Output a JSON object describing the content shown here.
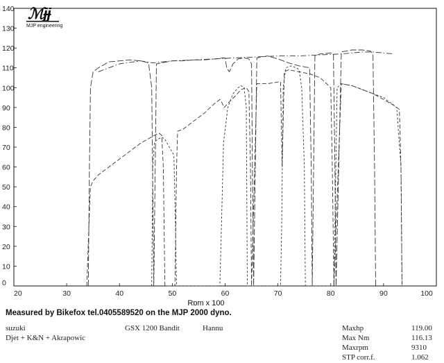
{
  "logo": {
    "brand": "MJP engineering"
  },
  "measured_by": "Measured by Bikefox tel.0405589520 on the MJP 2000 dyno.",
  "bike": {
    "make": "suzuki",
    "model": "GSX 1200 Bandit",
    "rider": "Hannu",
    "mods": "Djet + K&N + Akrapowic"
  },
  "summary": [
    {
      "label": "Maxhp",
      "value": "119.00"
    },
    {
      "label": "Max Nm",
      "value": "116.13"
    },
    {
      "label": "Maxrpm",
      "value": "9310"
    },
    {
      "label": "STP corr.f.",
      "value": "1.062"
    }
  ],
  "chart_data": {
    "type": "line",
    "xlabel": "Rpm x 100",
    "ylabel": "",
    "xlim": [
      20,
      100
    ],
    "ylim": [
      0,
      140
    ],
    "x_ticks": [
      20,
      30,
      40,
      50,
      60,
      70,
      80,
      90,
      100
    ],
    "y_ticks": [
      0,
      10,
      20,
      30,
      40,
      50,
      60,
      70,
      80,
      90,
      100,
      110,
      120,
      130,
      140
    ],
    "grid": false,
    "series": [
      {
        "style": "dash-long",
        "x": [
          34.1,
          34.3,
          34.5,
          35,
          36,
          38,
          40,
          42,
          44,
          45.5,
          46.1,
          46.3,
          46.5,
          47,
          48,
          49,
          50,
          52,
          54,
          56,
          58,
          59.5,
          60,
          60.3,
          60.8,
          61.5,
          62.5,
          63.5,
          64.5,
          65,
          65.2,
          65.4,
          66,
          68,
          70,
          72,
          74,
          76,
          76.3,
          76.5,
          77,
          78,
          80,
          80.5,
          80.8,
          81,
          82,
          84,
          86,
          87.5,
          88,
          88.3,
          88.5
        ],
        "y": [
          0,
          60,
          100,
          108,
          110,
          113,
          113.5,
          114,
          113.5,
          112.5,
          100,
          50,
          0,
          112,
          112.5,
          113,
          113.5,
          113.5,
          114,
          114,
          114.5,
          115,
          115,
          110,
          108,
          112,
          114.5,
          115,
          114.5,
          112,
          50,
          0,
          115,
          116,
          114.5,
          112.5,
          111,
          110,
          60,
          0,
          116,
          117,
          117.5,
          117,
          60,
          0,
          118,
          119,
          119,
          118.5,
          117,
          60,
          0
        ]
      },
      {
        "style": "dash-medium",
        "x": [
          33.8,
          34.2,
          34.5,
          35,
          36,
          38,
          40,
          42,
          44,
          46,
          47,
          47.5,
          48,
          48.3,
          48.6,
          50.5,
          50.8,
          51,
          52,
          54,
          56,
          58,
          59,
          59.3,
          59.8,
          60.5,
          62,
          63,
          64,
          64.5,
          64.8,
          65,
          66,
          68,
          70.5,
          70.8,
          71.2,
          72,
          74,
          76,
          78,
          80,
          80.3,
          80.6,
          82,
          84,
          86,
          88,
          90,
          92,
          93,
          93.3,
          93.5
        ],
        "y": [
          0,
          30,
          50,
          53,
          56,
          60,
          64,
          68,
          72,
          75,
          76.5,
          77,
          76,
          60,
          0,
          0,
          60,
          78,
          79,
          83,
          87,
          92,
          94,
          93,
          90,
          92,
          96,
          99,
          100,
          98,
          60,
          0,
          102,
          102,
          103,
          60,
          108,
          109,
          108,
          107,
          105,
          100,
          60,
          0,
          102,
          101,
          99,
          97,
          94,
          91,
          89,
          60,
          0
        ]
      },
      {
        "style": "dash-short",
        "x": [
          46.1,
          46.3,
          46.6,
          47,
          48,
          48.6,
          49,
          50.3,
          50.6,
          50.8,
          59,
          59.3,
          59.7,
          60.5,
          61.5,
          62.5,
          63,
          63.6,
          64,
          64.2,
          70.5,
          70.7,
          71,
          71.5,
          72.5,
          73.5,
          74,
          74.5,
          75,
          75.2,
          80.6,
          80.8,
          81.2,
          82,
          84,
          86,
          88,
          90,
          91,
          91.5,
          92.5,
          93.3,
          93.5
        ],
        "y": [
          0,
          60,
          72,
          73.5,
          75,
          74,
          72,
          66,
          30,
          0,
          0,
          30,
          72,
          90,
          97,
          100,
          101,
          100,
          90,
          0,
          0,
          30,
          100,
          110,
          111,
          110,
          109,
          100,
          60,
          0,
          0,
          30,
          100,
          102,
          101,
          99,
          97,
          95,
          93,
          92,
          90,
          60,
          0
        ]
      },
      {
        "style": "dash-dot",
        "x": [
          36,
          40,
          44,
          46.3,
          50,
          54,
          58,
          62,
          66,
          70,
          74,
          78,
          82,
          86,
          88,
          90,
          92
        ],
        "y": [
          108,
          112,
          113.5,
          112.5,
          113.5,
          114,
          114.5,
          115,
          115.5,
          116,
          116,
          116.5,
          117,
          118,
          118,
          117.5,
          117
        ]
      }
    ]
  }
}
